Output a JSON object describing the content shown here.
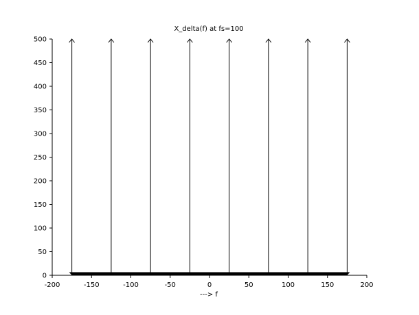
{
  "chart_data": {
    "type": "stem",
    "title": "X_delta(f) at fs=100",
    "xlabel": "--->  f",
    "ylabel": "",
    "xlim": [
      -200,
      200
    ],
    "ylim": [
      0,
      500
    ],
    "grid": false,
    "x_ticks": [
      -200,
      -150,
      -100,
      -50,
      0,
      50,
      100,
      150,
      200
    ],
    "y_ticks": [
      0,
      50,
      100,
      150,
      200,
      250,
      300,
      350,
      400,
      450,
      500
    ],
    "x_tick_labels": [
      "-200",
      "-150",
      "-100",
      "-50",
      "0",
      "50",
      "100",
      "150",
      "200"
    ],
    "y_tick_labels": [
      "0",
      "50",
      "100",
      "150",
      "200",
      "250",
      "300",
      "350",
      "400",
      "450",
      "500"
    ],
    "series": [
      {
        "x": [
          -175,
          -125,
          -75,
          -25,
          25,
          75,
          125,
          175
        ],
        "y": [
          500,
          500,
          500,
          500,
          500,
          500,
          500,
          500
        ]
      }
    ],
    "baseline": {
      "x_from": -175,
      "x_to": 175,
      "y": 0
    }
  }
}
